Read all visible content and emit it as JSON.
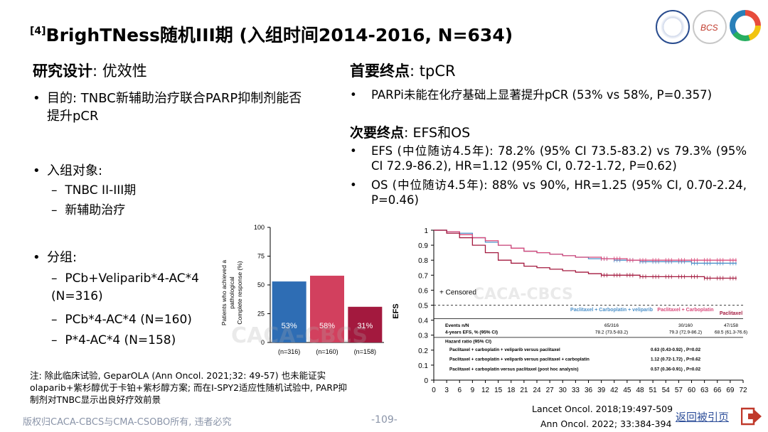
{
  "title": {
    "ref": "[4]",
    "text": "BrighTNess随机III期 (入组时间2014-2016, N=634)"
  },
  "left": {
    "design_heading": "研究设计",
    "design_value": ": 优效性",
    "purpose_bullet": "目的: TNBC新辅助治疗联合PARP抑制剂能否提升pCR",
    "population_bullet": "入组对象:",
    "population_items": [
      "TNBC II-III期",
      "新辅助治疗"
    ],
    "group_bullet": "分组:",
    "group_items": [
      "PCb+Veliparib*4-AC*4 (N=316)",
      "PCb*4-AC*4 (N=160)",
      "P*4-AC*4 (N=158)"
    ]
  },
  "right": {
    "primary_heading": "首要终点",
    "primary_value": ": tpCR",
    "primary_bullet": "PARPi未能在化疗基础上显著提升pCR (53% vs 58%, P=0.357)",
    "secondary_heading": "次要终点",
    "secondary_value": ": EFS和OS",
    "efs_bullet": "EFS (中位随访4.5年): 78.2% (95% CI 73.5-83.2) vs 79.3% (95% CI 72.9-86.2), HR=1.12 (95% CI, 0.72-1.72, P=0.62)",
    "os_bullet": "OS (中位随访4.5年): 88% vs 90%, HR=1.25 (95% CI, 0.70-2.24, P=0.46)"
  },
  "watermark": "CACA-CBCS",
  "chart_data": [
    {
      "type": "bar",
      "ylabel": "Patients who achieved a pathological Complete response (%)",
      "ylim": [
        0,
        100
      ],
      "yticks": [
        "0",
        "25",
        "50",
        "75",
        "100"
      ],
      "categories": [
        "(n=316)",
        "(n=160)",
        "(n=158)"
      ],
      "values": [
        53,
        58,
        31
      ],
      "data_labels": [
        "53%",
        "58%",
        "31%"
      ],
      "colors": [
        "#2e6db4",
        "#d2405e",
        "#a3193e"
      ]
    },
    {
      "type": "line",
      "ylabel": "EFS",
      "xlim": [
        0,
        72
      ],
      "ylim": [
        0,
        1
      ],
      "xticks": [
        "0",
        "3",
        "6",
        "9",
        "12",
        "15",
        "18",
        "21",
        "24",
        "27",
        "30",
        "33",
        "36",
        "39",
        "42",
        "45",
        "48",
        "51",
        "54",
        "57",
        "60",
        "63",
        "66",
        "69",
        "72"
      ],
      "yticks": [
        "0",
        "0.1",
        "0.2",
        "0.3",
        "0.4",
        "0.5",
        "0.6",
        "0.7",
        "0.8",
        "0.9",
        "1"
      ],
      "censored_label": "Censored",
      "reference_line": 0.5,
      "series": [
        {
          "name": "Paclitaxel + Carboplatin + veliparib",
          "color": "#4a8fc8",
          "x": [
            0,
            3,
            6,
            9,
            12,
            15,
            18,
            21,
            24,
            27,
            30,
            33,
            36,
            39,
            42,
            45,
            48,
            51,
            54,
            57,
            60,
            63,
            66,
            69
          ],
          "y": [
            1.0,
            0.99,
            0.98,
            0.95,
            0.92,
            0.9,
            0.88,
            0.86,
            0.85,
            0.84,
            0.83,
            0.82,
            0.81,
            0.81,
            0.8,
            0.8,
            0.79,
            0.79,
            0.79,
            0.79,
            0.78,
            0.78,
            0.78,
            0.78
          ]
        },
        {
          "name": "Paclitaxel + Carboplatin",
          "color": "#d9497a",
          "x": [
            0,
            3,
            6,
            9,
            12,
            15,
            18,
            21,
            24,
            27,
            30,
            33,
            36,
            39,
            42,
            45,
            48,
            51,
            54,
            57,
            60,
            63,
            66,
            69
          ],
          "y": [
            1.0,
            0.99,
            0.97,
            0.95,
            0.93,
            0.9,
            0.88,
            0.86,
            0.85,
            0.84,
            0.83,
            0.82,
            0.82,
            0.81,
            0.81,
            0.8,
            0.8,
            0.8,
            0.8,
            0.8,
            0.8,
            0.8,
            0.8,
            0.8
          ]
        },
        {
          "name": "Paclitaxel",
          "color": "#a3193e",
          "x": [
            0,
            3,
            6,
            9,
            12,
            15,
            18,
            21,
            24,
            27,
            30,
            33,
            36,
            39,
            42,
            45,
            48,
            51,
            54,
            57,
            60,
            63,
            66,
            69
          ],
          "y": [
            1.0,
            0.98,
            0.95,
            0.9,
            0.85,
            0.8,
            0.78,
            0.76,
            0.75,
            0.74,
            0.73,
            0.72,
            0.71,
            0.7,
            0.7,
            0.7,
            0.69,
            0.69,
            0.69,
            0.69,
            0.69,
            0.68,
            0.68,
            0.68
          ]
        }
      ],
      "table": {
        "events_label": "Events n/N",
        "events": [
          "65/316",
          "30/160",
          "47/158"
        ],
        "efs_label": "4-years EFS, % (95% CI)",
        "efs": [
          "78.2 (73.5-83.2)",
          "79.3 (72.9-86.2)",
          "68.5 (61.3-76.6)"
        ],
        "hr_label": "Hazard ratio (95% CI)",
        "hr_rows": [
          {
            "label": "Paclitaxel + carboplatin + veliparib versus paclitaxel",
            "value": "0.63 (0.43-0.92) , P=0.02"
          },
          {
            "label": "Paclitaxel + carboplatin + veliparib versus paclitaxel + carboplatin",
            "value": "1.12 (0.72-1.72) , P=0.62"
          },
          {
            "label": "Paclitaxel + carboplatin versus paclitaxel (post hoc analysis)",
            "value": "0.57 (0.36-0.91) , P=0.02"
          }
        ],
        "headers": [
          "Paclitaxel + Carboplatin + veliparib",
          "Paclitaxel + Carboplatin",
          "Paclitaxel"
        ]
      }
    }
  ],
  "note": "注: 除此临床试验, GeparOLA (Ann Oncol. 2021;32: 49-57) 也未能证实olaparib+紫杉醇优于卡铂+紫杉醇方案; 而在I-SPY2适应性随机试验中, PARP抑制剂对TNBC显示出良好疗效前景",
  "references": [
    "Lancet Oncol. 2018;19:497-509",
    "Ann Oncol. 2022; 33:384-394"
  ],
  "footer": {
    "copyright": "版权归CACA-CBCS与CMA-CSOBO所有, 违者必究",
    "page": "-109-",
    "back_link": "返回被引页"
  }
}
